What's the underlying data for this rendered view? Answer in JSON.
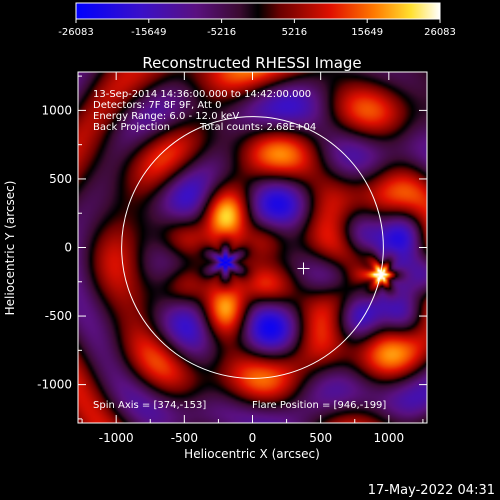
{
  "title": "Reconstructed RHESSI Image",
  "footer_timestamp": "17-May-2022 04:31",
  "annotations": {
    "time_range": "13-Sep-2014 14:36:00.000 to 14:42:00.000",
    "detectors": "Detectors: 7F 8F 9F, Att 0",
    "energy_range": "Energy Range: 6.0 - 12.0 keV",
    "method": "Back Projection",
    "total_counts": "Total counts: 2.68E+04",
    "spin_axis": "Spin Axis = [374,-153]",
    "flare_position": "Flare Position = [946,-199]"
  },
  "colorbar": {
    "min": -26083,
    "max": 26083,
    "tick_labels": [
      "-26083",
      "-15649",
      "-5216",
      "5216",
      "15649",
      "26083"
    ]
  },
  "colors": {
    "background": "#000000",
    "foreground": "#ffffff",
    "positive_peak": "#fffde0",
    "negative_peak": "#2a1ab0"
  },
  "chart_data": {
    "type": "heatmap",
    "title": "Reconstructed RHESSI Image",
    "xlabel": "Heliocentric X (arcsec)",
    "ylabel": "Heliocentric Y (arcsec)",
    "xlim": [
      -1280,
      1280
    ],
    "ylim": [
      -1280,
      1280
    ],
    "x_ticks": [
      -1000,
      -500,
      0,
      500,
      1000
    ],
    "y_ticks": [
      -1000,
      -500,
      0,
      500,
      1000
    ],
    "x_tick_labels": [
      "-1000",
      "-500",
      "0",
      "500",
      "1000"
    ],
    "y_tick_labels": [
      "-1000",
      "-500",
      "0",
      "500",
      "1000"
    ],
    "value_range": [
      -26083,
      26083
    ],
    "solar_limb_radius_arcsec": 960,
    "spin_axis": [
      374,
      -153
    ],
    "flare_position": [
      946,
      -199
    ]
  }
}
